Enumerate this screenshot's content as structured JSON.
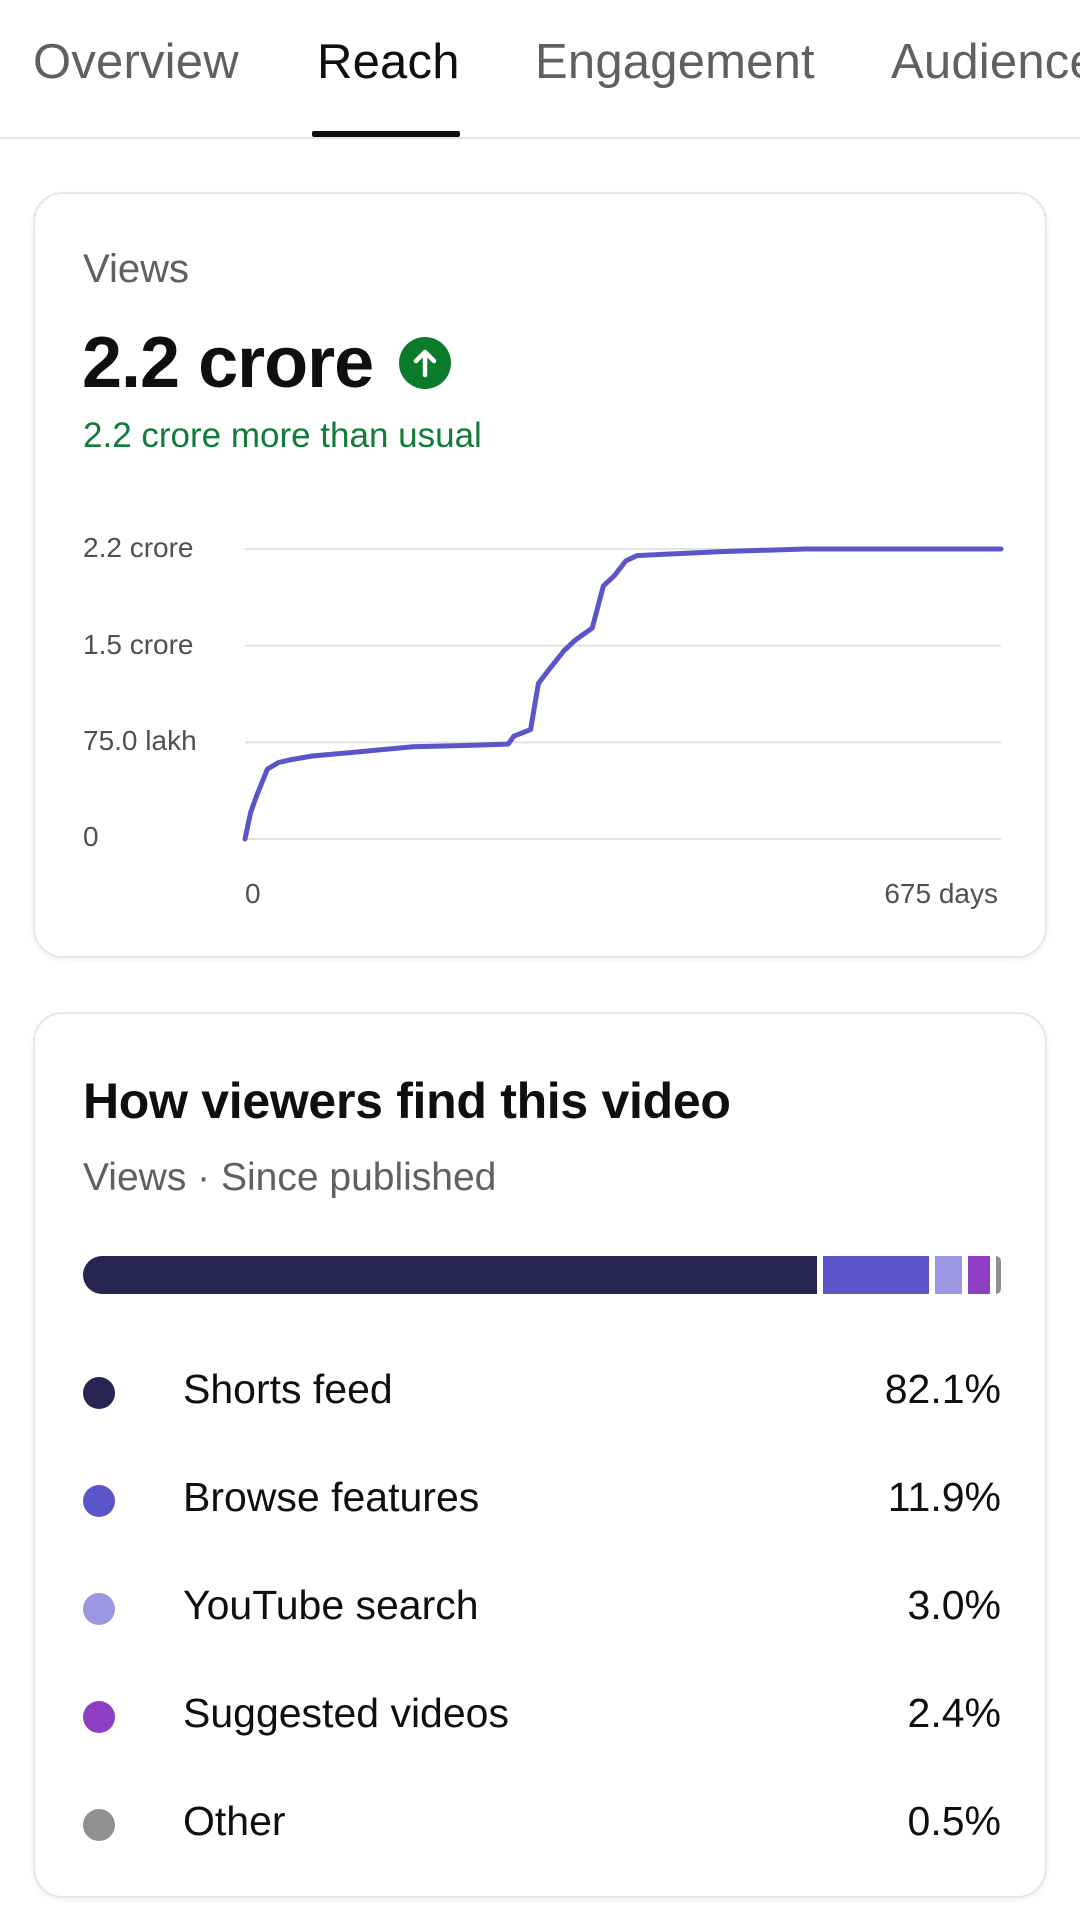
{
  "tabs": [
    {
      "label": "Overview",
      "active": false
    },
    {
      "label": "Reach",
      "active": true
    },
    {
      "label": "Engagement",
      "active": false
    },
    {
      "label": "Audience",
      "active": false
    }
  ],
  "views_card": {
    "label": "Views",
    "value": "2.2 crore",
    "trend_icon": "arrow-up-circle-icon",
    "delta_text": "2.2 crore more than usual",
    "colors": {
      "trend": "#0b7a2a",
      "delta_text": "#127a3a",
      "line": "#5b55c9"
    }
  },
  "chart_data": {
    "type": "line",
    "title": "",
    "xlabel": "",
    "ylabel": "",
    "x_tick_labels": [
      "0",
      "675 days"
    ],
    "y_tick_labels": [
      "2.2 crore",
      "1.5 crore",
      "75.0 lakh",
      "0"
    ],
    "xlim": [
      0,
      675
    ],
    "ylim": [
      0,
      22000000
    ],
    "grid": true,
    "series": [
      {
        "x": [
          0,
          5,
          10,
          20,
          30,
          40,
          60,
          100,
          150,
          200,
          235,
          240,
          255,
          262,
          270,
          285,
          295,
          310,
          320,
          330,
          340,
          350,
          375,
          425,
          500,
          600,
          675
        ],
        "values": [
          0,
          2000000,
          3200000,
          5300000,
          5800000,
          6000000,
          6300000,
          6600000,
          7000000,
          7100000,
          7200000,
          7800000,
          8300000,
          11800000,
          12700000,
          14300000,
          15100000,
          16000000,
          19200000,
          20000000,
          21100000,
          21500000,
          21600000,
          21800000,
          22000000,
          22000000,
          22000000
        ]
      }
    ]
  },
  "traffic_card": {
    "title": "How viewers find this video",
    "subtitle": "Views · Since published",
    "sources": [
      {
        "name": "Shorts feed",
        "value_text": "82.1%",
        "percent": 82.1,
        "color": "#272451"
      },
      {
        "name": "Browse features",
        "value_text": "11.9%",
        "percent": 11.9,
        "color": "#5b55c9"
      },
      {
        "name": "YouTube search",
        "value_text": "3.0%",
        "percent": 3.0,
        "color": "#9a96e1"
      },
      {
        "name": "Suggested videos",
        "value_text": "2.4%",
        "percent": 2.4,
        "color": "#8e3fc3"
      },
      {
        "name": "Other",
        "value_text": "0.5%",
        "percent": 0.5,
        "color": "#909090"
      }
    ]
  }
}
